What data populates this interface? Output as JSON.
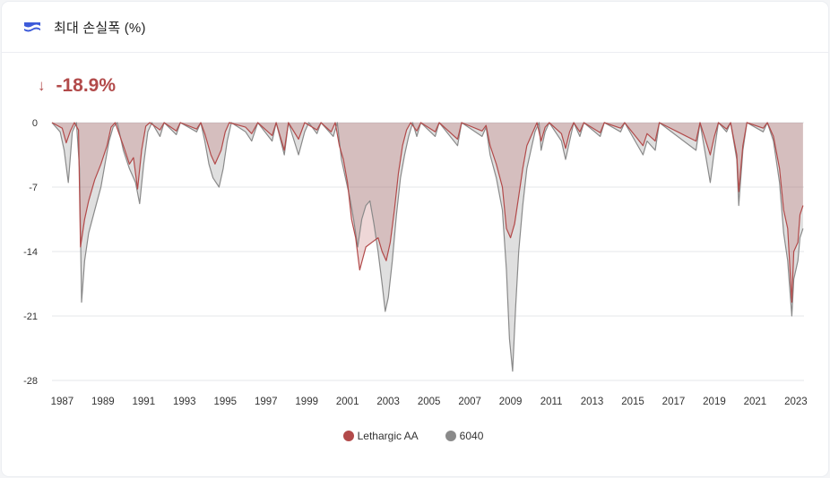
{
  "header": {
    "title": "최대 손실폭 (%)",
    "icon": "drawdown-waves-icon"
  },
  "summary": {
    "direction_icon": "arrow-down-icon",
    "value": "-18.9%",
    "color": "#b24a4a"
  },
  "chart_data": {
    "type": "area",
    "title": "최대 손실폭 (%)",
    "xlabel": "",
    "ylabel": "",
    "x_range": [
      1986.5,
      2023.4
    ],
    "ylim": [
      -28,
      0
    ],
    "yticks": [
      {
        "value": 0,
        "label": "0"
      },
      {
        "value": -7,
        "label": "-7"
      },
      {
        "value": -14,
        "label": "-14"
      },
      {
        "value": -21,
        "label": "-21"
      },
      {
        "value": -28,
        "label": "-28"
      }
    ],
    "xticks": [
      1987,
      1989,
      1991,
      1993,
      1995,
      1997,
      1999,
      2001,
      2003,
      2005,
      2007,
      2009,
      2011,
      2013,
      2015,
      2017,
      2019,
      2021,
      2023
    ],
    "grid": true,
    "legend_position": "bottom",
    "series": [
      {
        "name": "Lethargic AA",
        "color": "#b24a4a",
        "fill": "rgba(178,74,74,0.22)",
        "points": [
          [
            1986.5,
            0
          ],
          [
            1987.0,
            -0.6
          ],
          [
            1987.2,
            -2.2
          ],
          [
            1987.4,
            -0.9
          ],
          [
            1987.6,
            0
          ],
          [
            1987.8,
            -0.8
          ],
          [
            1987.9,
            -13.5
          ],
          [
            1988.1,
            -10.5
          ],
          [
            1988.3,
            -8.5
          ],
          [
            1988.6,
            -6.2
          ],
          [
            1988.9,
            -4.5
          ],
          [
            1989.2,
            -2.5
          ],
          [
            1989.4,
            -0.5
          ],
          [
            1989.6,
            0
          ],
          [
            1990.0,
            -2.5
          ],
          [
            1990.3,
            -4.5
          ],
          [
            1990.5,
            -3.8
          ],
          [
            1990.7,
            -7.2
          ],
          [
            1990.9,
            -3.0
          ],
          [
            1991.1,
            -0.4
          ],
          [
            1991.3,
            0
          ],
          [
            1991.8,
            -0.8
          ],
          [
            1992.0,
            0
          ],
          [
            1992.6,
            -0.9
          ],
          [
            1992.8,
            0
          ],
          [
            1993.6,
            -0.7
          ],
          [
            1993.8,
            0
          ],
          [
            1994.0,
            -1.2
          ],
          [
            1994.3,
            -3.5
          ],
          [
            1994.5,
            -4.5
          ],
          [
            1994.8,
            -3.0
          ],
          [
            1995.0,
            -1.0
          ],
          [
            1995.2,
            0
          ],
          [
            1996.0,
            -0.5
          ],
          [
            1996.3,
            -1.2
          ],
          [
            1996.6,
            0
          ],
          [
            1997.3,
            -1.4
          ],
          [
            1997.5,
            0
          ],
          [
            1997.9,
            -3.0
          ],
          [
            1998.1,
            0
          ],
          [
            1998.6,
            -1.8
          ],
          [
            1998.9,
            0
          ],
          [
            1999.5,
            -0.8
          ],
          [
            1999.7,
            0
          ],
          [
            2000.2,
            -1.0
          ],
          [
            2000.4,
            0
          ],
          [
            2000.6,
            -2.5
          ],
          [
            2000.8,
            -4.0
          ],
          [
            2001.0,
            -6.5
          ],
          [
            2001.2,
            -10.5
          ],
          [
            2001.4,
            -12.5
          ],
          [
            2001.6,
            -16.0
          ],
          [
            2001.9,
            -13.5
          ],
          [
            2002.2,
            -13.0
          ],
          [
            2002.5,
            -12.5
          ],
          [
            2002.7,
            -14.0
          ],
          [
            2002.9,
            -15.0
          ],
          [
            2003.1,
            -13.0
          ],
          [
            2003.3,
            -9.5
          ],
          [
            2003.5,
            -5.5
          ],
          [
            2003.7,
            -2.5
          ],
          [
            2003.9,
            -0.8
          ],
          [
            2004.1,
            0
          ],
          [
            2004.4,
            -0.9
          ],
          [
            2004.6,
            0
          ],
          [
            2005.3,
            -1.0
          ],
          [
            2005.5,
            0
          ],
          [
            2006.4,
            -1.8
          ],
          [
            2006.6,
            0
          ],
          [
            2007.6,
            -0.9
          ],
          [
            2007.8,
            -0.3
          ],
          [
            2008.0,
            -2.5
          ],
          [
            2008.3,
            -4.5
          ],
          [
            2008.6,
            -7.0
          ],
          [
            2008.8,
            -11.5
          ],
          [
            2009.0,
            -12.5
          ],
          [
            2009.2,
            -11.0
          ],
          [
            2009.4,
            -8.0
          ],
          [
            2009.6,
            -5.0
          ],
          [
            2009.8,
            -2.5
          ],
          [
            2010.1,
            -1.0
          ],
          [
            2010.3,
            0
          ],
          [
            2010.5,
            -2.0
          ],
          [
            2010.7,
            -0.5
          ],
          [
            2010.9,
            0
          ],
          [
            2011.5,
            -1.2
          ],
          [
            2011.7,
            -2.8
          ],
          [
            2011.9,
            -1.0
          ],
          [
            2012.1,
            0
          ],
          [
            2012.4,
            -1.0
          ],
          [
            2012.6,
            0
          ],
          [
            2013.4,
            -1.1
          ],
          [
            2013.6,
            0
          ],
          [
            2014.4,
            -0.6
          ],
          [
            2014.6,
            0
          ],
          [
            2015.5,
            -2.5
          ],
          [
            2015.7,
            -1.2
          ],
          [
            2016.1,
            -2.0
          ],
          [
            2016.3,
            0
          ],
          [
            2018.1,
            -2.0
          ],
          [
            2018.3,
            0
          ],
          [
            2018.8,
            -3.5
          ],
          [
            2019.0,
            -1.5
          ],
          [
            2019.2,
            0
          ],
          [
            2019.6,
            -0.7
          ],
          [
            2019.8,
            0
          ],
          [
            2020.1,
            -3.5
          ],
          [
            2020.2,
            -7.5
          ],
          [
            2020.4,
            -2.5
          ],
          [
            2020.6,
            0
          ],
          [
            2021.4,
            -0.6
          ],
          [
            2021.6,
            0
          ],
          [
            2021.9,
            -1.5
          ],
          [
            2022.2,
            -5.0
          ],
          [
            2022.4,
            -9.5
          ],
          [
            2022.6,
            -11.5
          ],
          [
            2022.8,
            -19.5
          ],
          [
            2022.9,
            -14.0
          ],
          [
            2023.1,
            -13.0
          ],
          [
            2023.2,
            -10.0
          ],
          [
            2023.35,
            -9.0
          ]
        ]
      },
      {
        "name": "6040",
        "color": "#8a8a8a",
        "fill": "rgba(150,150,150,0.30)",
        "points": [
          [
            1986.5,
            0
          ],
          [
            1986.9,
            -1.0
          ],
          [
            1987.1,
            -3.0
          ],
          [
            1987.3,
            -6.5
          ],
          [
            1987.5,
            -1.0
          ],
          [
            1987.7,
            0
          ],
          [
            1987.85,
            -5.0
          ],
          [
            1987.95,
            -19.5
          ],
          [
            1988.1,
            -15.0
          ],
          [
            1988.3,
            -12.0
          ],
          [
            1988.6,
            -9.5
          ],
          [
            1988.9,
            -7.0
          ],
          [
            1989.1,
            -4.5
          ],
          [
            1989.3,
            -2.0
          ],
          [
            1989.5,
            -0.5
          ],
          [
            1989.7,
            0
          ],
          [
            1990.0,
            -3.0
          ],
          [
            1990.3,
            -5.0
          ],
          [
            1990.6,
            -6.5
          ],
          [
            1990.8,
            -8.8
          ],
          [
            1991.0,
            -4.5
          ],
          [
            1991.2,
            -1.0
          ],
          [
            1991.4,
            0
          ],
          [
            1991.8,
            -1.5
          ],
          [
            1992.0,
            0
          ],
          [
            1992.6,
            -1.3
          ],
          [
            1992.8,
            0
          ],
          [
            1993.6,
            -1.0
          ],
          [
            1993.8,
            0
          ],
          [
            1994.0,
            -2.0
          ],
          [
            1994.2,
            -4.5
          ],
          [
            1994.4,
            -6.0
          ],
          [
            1994.7,
            -7.0
          ],
          [
            1994.9,
            -5.0
          ],
          [
            1995.1,
            -2.0
          ],
          [
            1995.3,
            0
          ],
          [
            1996.0,
            -1.0
          ],
          [
            1996.3,
            -2.0
          ],
          [
            1996.6,
            0
          ],
          [
            1997.3,
            -2.0
          ],
          [
            1997.5,
            0
          ],
          [
            1997.9,
            -3.5
          ],
          [
            1998.1,
            0
          ],
          [
            1998.6,
            -3.5
          ],
          [
            1998.9,
            -1.0
          ],
          [
            1999.1,
            0
          ],
          [
            1999.5,
            -1.2
          ],
          [
            1999.7,
            0
          ],
          [
            2000.3,
            -1.5
          ],
          [
            2000.5,
            0
          ],
          [
            2000.7,
            -4.0
          ],
          [
            2000.9,
            -6.0
          ],
          [
            2001.1,
            -8.0
          ],
          [
            2001.3,
            -10.5
          ],
          [
            2001.5,
            -13.5
          ],
          [
            2001.7,
            -10.5
          ],
          [
            2001.9,
            -9.0
          ],
          [
            2002.1,
            -8.5
          ],
          [
            2002.3,
            -11.0
          ],
          [
            2002.5,
            -14.0
          ],
          [
            2002.7,
            -17.5
          ],
          [
            2002.85,
            -20.5
          ],
          [
            2003.0,
            -19.0
          ],
          [
            2003.2,
            -15.0
          ],
          [
            2003.4,
            -10.0
          ],
          [
            2003.6,
            -6.0
          ],
          [
            2003.8,
            -3.5
          ],
          [
            2004.0,
            -1.5
          ],
          [
            2004.2,
            0
          ],
          [
            2004.4,
            -1.5
          ],
          [
            2004.6,
            0
          ],
          [
            2005.3,
            -1.5
          ],
          [
            2005.5,
            0
          ],
          [
            2006.4,
            -2.5
          ],
          [
            2006.6,
            0
          ],
          [
            2007.6,
            -1.5
          ],
          [
            2007.8,
            -0.5
          ],
          [
            2008.0,
            -3.5
          ],
          [
            2008.3,
            -6.0
          ],
          [
            2008.6,
            -9.5
          ],
          [
            2008.8,
            -16.0
          ],
          [
            2008.95,
            -23.5
          ],
          [
            2009.1,
            -27.0
          ],
          [
            2009.25,
            -20.0
          ],
          [
            2009.4,
            -14.0
          ],
          [
            2009.6,
            -9.0
          ],
          [
            2009.8,
            -5.0
          ],
          [
            2010.0,
            -3.0
          ],
          [
            2010.2,
            -1.0
          ],
          [
            2010.4,
            0
          ],
          [
            2010.5,
            -3.0
          ],
          [
            2010.7,
            -1.0
          ],
          [
            2010.9,
            0
          ],
          [
            2011.5,
            -2.0
          ],
          [
            2011.7,
            -4.0
          ],
          [
            2011.9,
            -2.0
          ],
          [
            2012.1,
            0
          ],
          [
            2012.4,
            -1.5
          ],
          [
            2012.6,
            0
          ],
          [
            2013.4,
            -1.5
          ],
          [
            2013.6,
            0
          ],
          [
            2014.4,
            -1.0
          ],
          [
            2014.6,
            0
          ],
          [
            2015.5,
            -3.5
          ],
          [
            2015.7,
            -2.0
          ],
          [
            2016.1,
            -3.0
          ],
          [
            2016.3,
            0
          ],
          [
            2018.1,
            -3.0
          ],
          [
            2018.3,
            0
          ],
          [
            2018.8,
            -6.5
          ],
          [
            2019.0,
            -3.0
          ],
          [
            2019.2,
            0
          ],
          [
            2019.6,
            -1.0
          ],
          [
            2019.8,
            0
          ],
          [
            2020.1,
            -4.0
          ],
          [
            2020.2,
            -9.0
          ],
          [
            2020.4,
            -3.0
          ],
          [
            2020.6,
            0
          ],
          [
            2021.4,
            -1.0
          ],
          [
            2021.6,
            0
          ],
          [
            2021.9,
            -2.0
          ],
          [
            2022.2,
            -6.5
          ],
          [
            2022.4,
            -12.0
          ],
          [
            2022.6,
            -15.0
          ],
          [
            2022.8,
            -21.0
          ],
          [
            2022.9,
            -17.0
          ],
          [
            2023.1,
            -15.0
          ],
          [
            2023.2,
            -12.5
          ],
          [
            2023.35,
            -11.5
          ]
        ]
      }
    ]
  }
}
